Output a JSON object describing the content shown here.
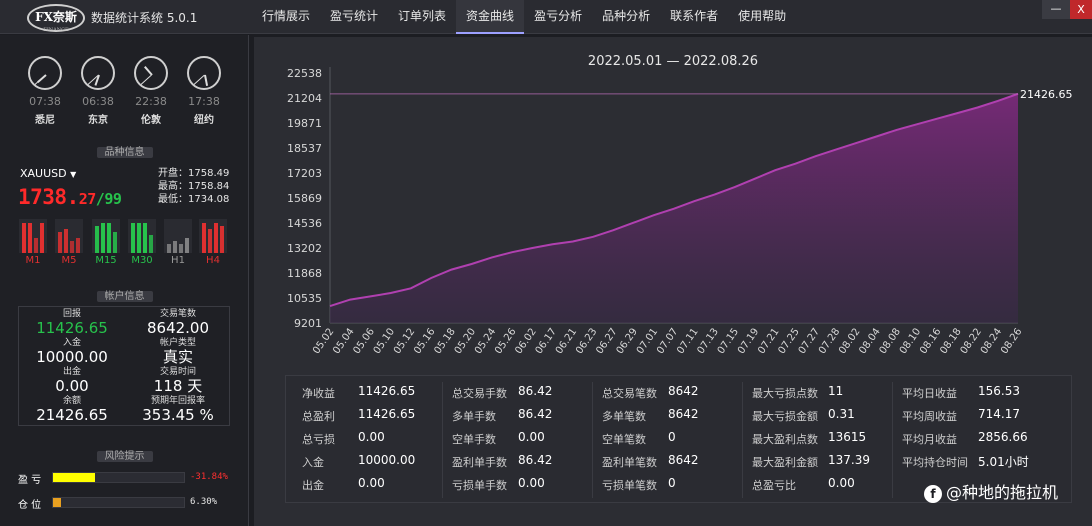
{
  "app": {
    "logo_text": "FX奈斯",
    "logo_sub": "FINANCE",
    "title": "数据统计系统 5.0.1",
    "minimize_label": "—",
    "close_label": "X"
  },
  "nav": {
    "tabs": [
      "行情展示",
      "盈亏统计",
      "订单列表",
      "资金曲线",
      "盈亏分析",
      "品种分析",
      "联系作者",
      "使用帮助"
    ],
    "active_index": 3
  },
  "clocks": [
    {
      "time": "07:38",
      "city": "悉尼"
    },
    {
      "time": "06:38",
      "city": "东京"
    },
    {
      "time": "22:38",
      "city": "伦敦"
    },
    {
      "time": "17:38",
      "city": "纽约"
    }
  ],
  "symbol_section": {
    "title": "品种信息",
    "symbol": "XAUUSD",
    "price_main": "1738.",
    "price_cents": "27",
    "price_sep": "/",
    "price_alt": "99",
    "open": "开盘：1758.49",
    "high": "最高：1758.84",
    "low": "最低：1734.08",
    "timeframes": [
      {
        "label": "M1",
        "color": "#e03030"
      },
      {
        "label": "M5",
        "color": "#e03030"
      },
      {
        "label": "M15",
        "color": "#27c24c"
      },
      {
        "label": "M30",
        "color": "#27c24c"
      },
      {
        "label": "H1",
        "color": "#9a9a9a"
      },
      {
        "label": "H4",
        "color": "#e03030"
      }
    ]
  },
  "account_section": {
    "title": "帐户信息",
    "items": [
      {
        "caption": "回报",
        "value": "11426.65",
        "color": "#27c24c"
      },
      {
        "caption": "交易笔数",
        "value": "8642.00",
        "color": "#ffffff"
      },
      {
        "caption": "入金",
        "value": "10000.00",
        "color": "#ffffff"
      },
      {
        "caption": "帐户类型",
        "value": "真实",
        "color": "#ffffff"
      },
      {
        "caption": "出金",
        "value": "0.00",
        "color": "#ffffff"
      },
      {
        "caption": "交易时间",
        "value": "118 天",
        "color": "#ffffff"
      },
      {
        "caption": "余额",
        "value": "21426.65",
        "color": "#ffffff"
      },
      {
        "caption": "预期年回报率",
        "value": "353.45 %",
        "color": "#ffffff"
      }
    ]
  },
  "risk_section": {
    "title": "风险提示",
    "rows": [
      {
        "label": "盈 亏",
        "value": "-31.84%",
        "fill_fraction": 0.3184,
        "fill_color": "#ffff00",
        "value_color": "#ff3030"
      },
      {
        "label": "仓 位",
        "value": "6.30%",
        "fill_fraction": 0.063,
        "fill_color": "#e8a020",
        "value_color": "#e6e6e6"
      }
    ]
  },
  "chart_data": {
    "type": "area",
    "title": "2022.05.01 — 2022.08.26",
    "y_ticks": [
      "22538",
      "21204",
      "19871",
      "18537",
      "17203",
      "15869",
      "14536",
      "13202",
      "11868",
      "10535",
      "9201"
    ],
    "ylim": [
      9201,
      22538
    ],
    "x_ticks": [
      "05.02",
      "05.04",
      "05.06",
      "05.10",
      "05.12",
      "05.16",
      "05.18",
      "05.20",
      "05.24",
      "05.26",
      "06.02",
      "06.17",
      "06.21",
      "06.23",
      "06.27",
      "06.29",
      "07.01",
      "07.07",
      "07.11",
      "07.13",
      "07.15",
      "07.19",
      "07.21",
      "07.25",
      "07.27",
      "07.28",
      "08.02",
      "08.04",
      "08.08",
      "08.10",
      "08.16",
      "08.18",
      "08.22",
      "08.24",
      "08.26"
    ],
    "last_value_label": "21426.65",
    "line_color": "#b040b0",
    "values": [
      10100,
      10450,
      10620,
      10800,
      11050,
      11600,
      12050,
      12350,
      12700,
      12980,
      13200,
      13400,
      13550,
      13800,
      14150,
      14550,
      14950,
      15300,
      15700,
      16050,
      16450,
      16900,
      17350,
      17700,
      18100,
      18450,
      18800,
      19150,
      19500,
      19800,
      20100,
      20400,
      20700,
      21050,
      21426.65
    ]
  },
  "stats": {
    "columns": [
      [
        {
          "k": "净收益",
          "v": "11426.65"
        },
        {
          "k": "总盈利",
          "v": "11426.65"
        },
        {
          "k": "总亏损",
          "v": "0.00"
        },
        {
          "k": "入金",
          "v": "10000.00"
        },
        {
          "k": "出金",
          "v": "0.00"
        }
      ],
      [
        {
          "k": "总交易手数",
          "v": "86.42"
        },
        {
          "k": "多单手数",
          "v": "86.42"
        },
        {
          "k": "空单手数",
          "v": "0.00"
        },
        {
          "k": "盈利单手数",
          "v": "86.42"
        },
        {
          "k": "亏损单手数",
          "v": "0.00"
        }
      ],
      [
        {
          "k": "总交易笔数",
          "v": "8642"
        },
        {
          "k": "多单笔数",
          "v": "8642"
        },
        {
          "k": "空单笔数",
          "v": "0"
        },
        {
          "k": "盈利单笔数",
          "v": "8642"
        },
        {
          "k": "亏损单笔数",
          "v": "0"
        }
      ],
      [
        {
          "k": "最大亏损点数",
          "v": "11"
        },
        {
          "k": "最大亏损金额",
          "v": "0.31"
        },
        {
          "k": "最大盈利点数",
          "v": "13615"
        },
        {
          "k": "最大盈利金额",
          "v": "137.39"
        },
        {
          "k": "总盈亏比",
          "v": "0.00"
        }
      ],
      [
        {
          "k": "平均日收益",
          "v": "156.53"
        },
        {
          "k": "平均周收益",
          "v": "714.17"
        },
        {
          "k": "平均月收益",
          "v": "2856.66"
        },
        {
          "k": "平均持仓时间",
          "v": "5.01小时"
        }
      ]
    ]
  },
  "watermark": {
    "icon": "f",
    "text": "@种地的拖拉机"
  }
}
